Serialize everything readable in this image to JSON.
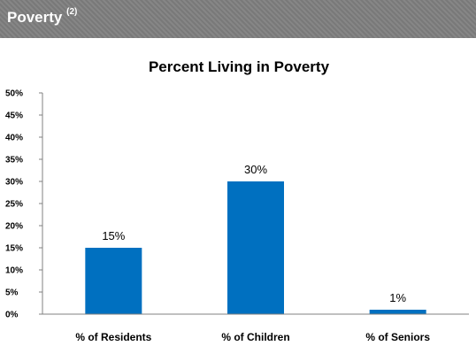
{
  "header": {
    "title": "Poverty",
    "footnote": "(2)"
  },
  "colors": {
    "bar": "#0070c0",
    "header_bg": "#7f7f7f",
    "axis": "#808080"
  },
  "chart_data": {
    "type": "bar",
    "title": "Percent Living in Poverty",
    "categories": [
      "% of Residents",
      "% of Children",
      "% of Seniors"
    ],
    "values": [
      15,
      30,
      1
    ],
    "data_labels": [
      "15%",
      "30%",
      "1%"
    ],
    "ylim": [
      0,
      50
    ],
    "y_ticks": [
      0,
      5,
      10,
      15,
      20,
      25,
      30,
      35,
      40,
      45,
      50
    ],
    "y_tick_labels": [
      "0%",
      "5%",
      "10%",
      "15%",
      "20%",
      "25%",
      "30%",
      "35%",
      "40%",
      "45%",
      "50%"
    ],
    "xlabel": "",
    "ylabel": "",
    "grid": false,
    "legend": "none"
  }
}
